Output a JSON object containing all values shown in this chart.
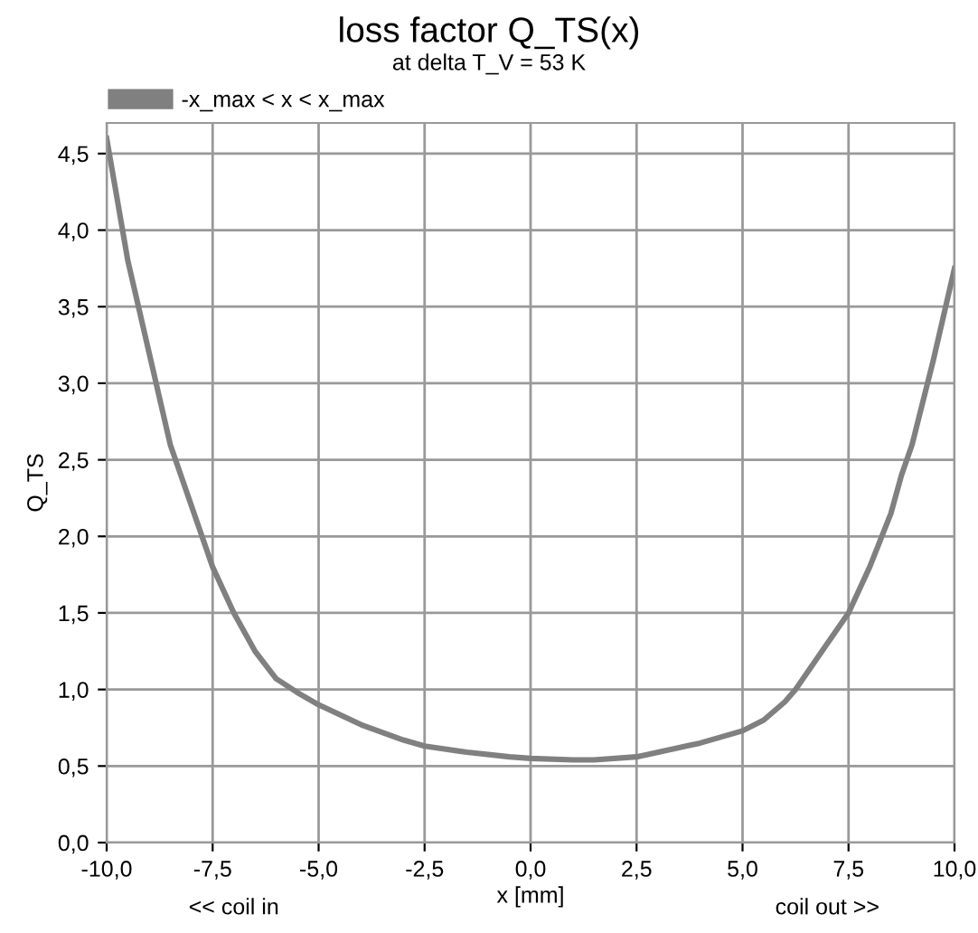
{
  "chart_data": {
    "type": "line",
    "title": "loss factor Q_TS(x)",
    "subtitle": "at delta T_V = 53 K",
    "xlabel": "x [mm]",
    "ylabel": "Q_TS",
    "annotations": [
      "<< coil in",
      "coil out >>"
    ],
    "series": [
      {
        "name": "-x_max < x < x_max",
        "color": "#808080",
        "x": [
          -10,
          -9.5,
          -9,
          -8.5,
          -8,
          -7.5,
          -7,
          -6.5,
          -6,
          -5.5,
          -5,
          -4,
          -3,
          -2.5,
          -1.5,
          -0.5,
          0,
          1,
          1.5,
          2.5,
          3.5,
          4,
          5,
          5.5,
          6,
          6.25,
          6.5,
          7,
          7.5,
          8,
          8.5,
          8.75,
          9,
          9.5,
          10
        ],
        "values": [
          4.6,
          3.8,
          3.2,
          2.6,
          2.2,
          1.8,
          1.5,
          1.25,
          1.07,
          0.98,
          0.9,
          0.77,
          0.67,
          0.63,
          0.59,
          0.56,
          0.55,
          0.54,
          0.54,
          0.56,
          0.62,
          0.65,
          0.73,
          0.8,
          0.92,
          1.0,
          1.1,
          1.3,
          1.5,
          1.8,
          2.15,
          2.4,
          2.6,
          3.15,
          3.75
        ]
      }
    ],
    "xlim": [
      -10,
      10
    ],
    "ylim": [
      0,
      4.7
    ],
    "xticks": [
      {
        "value": -10,
        "label": "-10,0"
      },
      {
        "value": -7.5,
        "label": "-7,5"
      },
      {
        "value": -5,
        "label": "-5,0"
      },
      {
        "value": -2.5,
        "label": "-2,5"
      },
      {
        "value": 0,
        "label": "0,0"
      },
      {
        "value": 2.5,
        "label": "2,5"
      },
      {
        "value": 5,
        "label": "5,0"
      },
      {
        "value": 7.5,
        "label": "7,5"
      },
      {
        "value": 10,
        "label": "10,0"
      }
    ],
    "yticks": [
      {
        "value": 0,
        "label": "0,0"
      },
      {
        "value": 0.5,
        "label": "0,5"
      },
      {
        "value": 1,
        "label": "1,0"
      },
      {
        "value": 1.5,
        "label": "1,5"
      },
      {
        "value": 2,
        "label": "2,0"
      },
      {
        "value": 2.5,
        "label": "2,5"
      },
      {
        "value": 3,
        "label": "3,0"
      },
      {
        "value": 3.5,
        "label": "3,5"
      },
      {
        "value": 4,
        "label": "4,0"
      },
      {
        "value": 4.5,
        "label": "4,5"
      }
    ],
    "grid": true,
    "legend": "top left",
    "marker": "none",
    "line_style": "solid"
  }
}
